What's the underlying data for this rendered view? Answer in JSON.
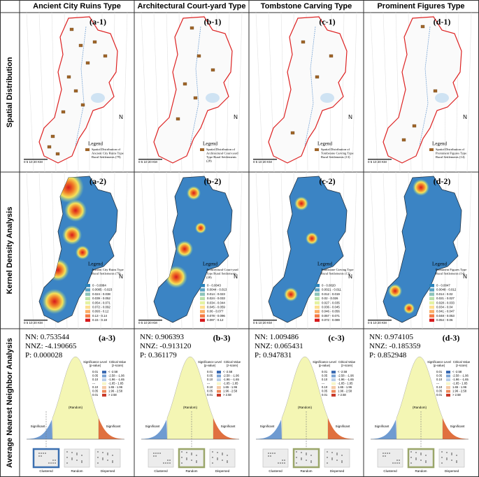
{
  "row_labels": [
    "Spatial Distribution",
    "Kernel Density Analysis",
    "Average Nearest Neighbor Analysis"
  ],
  "map_legend_title": "Legend",
  "scale_bar": "0  5  10    20 KM",
  "north": "N",
  "columns": [
    {
      "title": "Ancient City Ruins Type",
      "panels": [
        "(a-1)",
        "(a-2)",
        "(a-3)"
      ],
      "distribution_legend": [
        "Spatial Distribution of",
        "Ancient City Ruins Type",
        "Rural Settlements (79)"
      ],
      "density_legend": [
        "Ancient City Ruins Type",
        "Rural Settlements (79)"
      ],
      "density_classes": [
        "0 - 0.0084",
        "0.0085 - 0.023",
        "0.024 - 0.038",
        "0.039 - 0.052",
        "0.054 - 0.071",
        "0.072 - 0.092",
        "0.093 - 0.12",
        "0.13 - 0.14",
        "0.15 - 0.18"
      ],
      "stats": [
        {
          "label": "NN:",
          "value": 0.753544
        },
        {
          "label": "NNZ:",
          "value": -4.190665
        },
        {
          "label": "P:",
          "value": 2.8e-05
        }
      ],
      "pattern": "Clustered",
      "pattern_color": "#3a6fb0"
    },
    {
      "title": "Architectural Court-yard Type",
      "panels": [
        "(b-1)",
        "(b-2)",
        "(b-3)"
      ],
      "distribution_legend": [
        "Spatial Distribution of",
        "Architectural Court-yard",
        "Type Rural Settlements",
        "(28)"
      ],
      "density_legend": [
        "Architectural Court-yard",
        "Type Rural Settlements",
        "(28)"
      ],
      "density_classes": [
        "0 - 0.0043",
        "0.0044 - 0.013",
        "0.014 - 0.023",
        "0.024 - 0.033",
        "0.034 - 0.044",
        "0.045 - 0.059",
        "0.06 - 0.077",
        "0.078 - 0.096",
        "0.097 - 0.12"
      ],
      "stats": [
        {
          "label": "NN:",
          "value": 0.906393
        },
        {
          "label": "NNZ:",
          "value": {
            "value": -0.91312,
            "label": "-0.913120"
          }
        },
        {
          "label": "P:",
          "value": 0.361179
        }
      ],
      "pattern": "Random",
      "pattern_color": "#9aa66a"
    },
    {
      "title": "Tombstone Carving Type",
      "panels": [
        "(c-1)",
        "(c-2)",
        "(c-3)"
      ],
      "distribution_legend": [
        "Spatial Distribution of",
        "Tombstone Carving Type",
        "Rural Settlements (13)"
      ],
      "density_legend": [
        "Tombstone Carving Type",
        "Rural Settlements (13)"
      ],
      "density_classes": [
        "0 - 0.0020",
        "0.0021 - 0.011",
        "0.012 - 0.019",
        "0.02 - 0.026",
        "0.027 - 0.035",
        "0.036 - 0.045",
        "0.046 - 0.056",
        "0.057 - 0.071",
        "0.072 - 0.089"
      ],
      "stats": [
        {
          "label": "NN:",
          "value": 1.009486
        },
        {
          "label": "NNZ:",
          "value": 0.065431
        },
        {
          "label": "P:",
          "value": 0.947831
        }
      ],
      "pattern": "Random",
      "pattern_color": "#9aa66a"
    },
    {
      "title": "Prominent Figures Type",
      "panels": [
        "(d-1)",
        "(d-2)",
        "(d-3)"
      ],
      "distribution_legend": [
        "Spatial Distribution of",
        "Prominent Figures Type",
        "Rural Settlements (14)"
      ],
      "density_legend": [
        "Prominent Figures Type",
        "Rural Settlements (14)"
      ],
      "density_classes": [
        "0 - 0.0047",
        "0.0048 - 0.012",
        "0.014 - 0.02",
        "0.021 - 0.027",
        "0.028 - 0.033",
        "0.034 - 0.04",
        "0.041 - 0.047",
        "0.048 - 0.053",
        "0.054 - 0.06"
      ],
      "stats": [
        {
          "label": "NN:",
          "value": 0.974105
        },
        {
          "label": "NNZ:",
          "value": -0.185359
        },
        {
          "label": "P:",
          "value": 0.852948
        }
      ],
      "pattern": "Random",
      "pattern_color": "#9aa66a"
    }
  ],
  "anna_legend": {
    "p_title": [
      "Significance Level",
      "(p-value)"
    ],
    "z_title": [
      "Critical Value",
      "(z-score)"
    ],
    "p": [
      "0.01",
      "0.05",
      "0.10",
      "---",
      "0.10",
      "0.05",
      "0.01"
    ],
    "z": [
      "< -2.58",
      "-2.58 - -1.96",
      "-1.96 - -1.65",
      "-1.65 - 1.65",
      "1.65 - 1.96",
      "1.96 - 2.58",
      "> 2.58"
    ]
  },
  "curve_labels": {
    "left": "Significant",
    "middle": "(Random)",
    "right": "Significant"
  },
  "patterns": [
    "Clustered",
    "Random",
    "Dispersed"
  ]
}
